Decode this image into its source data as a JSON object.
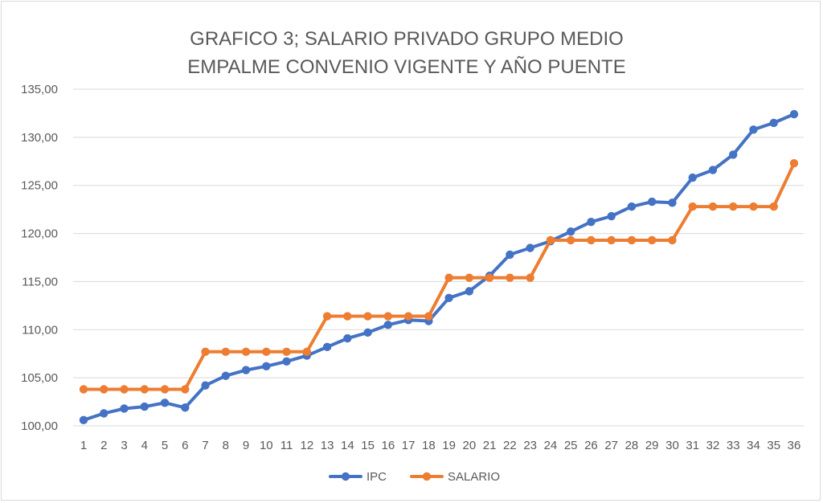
{
  "chart_data": {
    "type": "line",
    "title": "GRAFICO 3; SALARIO PRIVADO  GRUPO MEDIO",
    "subtitle": "EMPALME CONVENIO VIGENTE Y AÑO PUENTE",
    "xlabel": "",
    "ylabel": "",
    "ylim": [
      100,
      135
    ],
    "yticks": [
      "100,00",
      "105,00",
      "110,00",
      "115,00",
      "120,00",
      "125,00",
      "130,00",
      "135,00"
    ],
    "ytick_values": [
      100,
      105,
      110,
      115,
      120,
      125,
      130,
      135
    ],
    "categories": [
      "1",
      "2",
      "3",
      "4",
      "5",
      "6",
      "7",
      "8",
      "9",
      "10",
      "11",
      "12",
      "13",
      "14",
      "15",
      "16",
      "17",
      "18",
      "19",
      "20",
      "21",
      "22",
      "23",
      "24",
      "25",
      "26",
      "27",
      "28",
      "29",
      "30",
      "31",
      "32",
      "33",
      "34",
      "35",
      "36"
    ],
    "grid": true,
    "legend_position": "bottom",
    "series": [
      {
        "name": "IPC",
        "color": "#4472c4",
        "values": [
          100.6,
          101.3,
          101.8,
          102.0,
          102.4,
          101.9,
          104.2,
          105.2,
          105.8,
          106.2,
          106.7,
          107.3,
          108.2,
          109.1,
          109.7,
          110.5,
          111.0,
          110.9,
          113.3,
          114.0,
          115.6,
          117.8,
          118.5,
          119.2,
          120.2,
          121.2,
          121.8,
          122.8,
          123.3,
          123.2,
          125.8,
          126.6,
          128.2,
          130.8,
          131.5,
          132.4
        ]
      },
      {
        "name": "SALARIO",
        "color": "#ed7d31",
        "values": [
          103.8,
          103.8,
          103.8,
          103.8,
          103.8,
          103.8,
          107.7,
          107.7,
          107.7,
          107.7,
          107.7,
          107.7,
          111.4,
          111.4,
          111.4,
          111.4,
          111.4,
          111.4,
          115.4,
          115.4,
          115.4,
          115.4,
          115.4,
          119.3,
          119.3,
          119.3,
          119.3,
          119.3,
          119.3,
          119.3,
          122.8,
          122.8,
          122.8,
          122.8,
          122.8,
          127.3
        ]
      }
    ],
    "gridline_color": "#d9d9d9"
  }
}
